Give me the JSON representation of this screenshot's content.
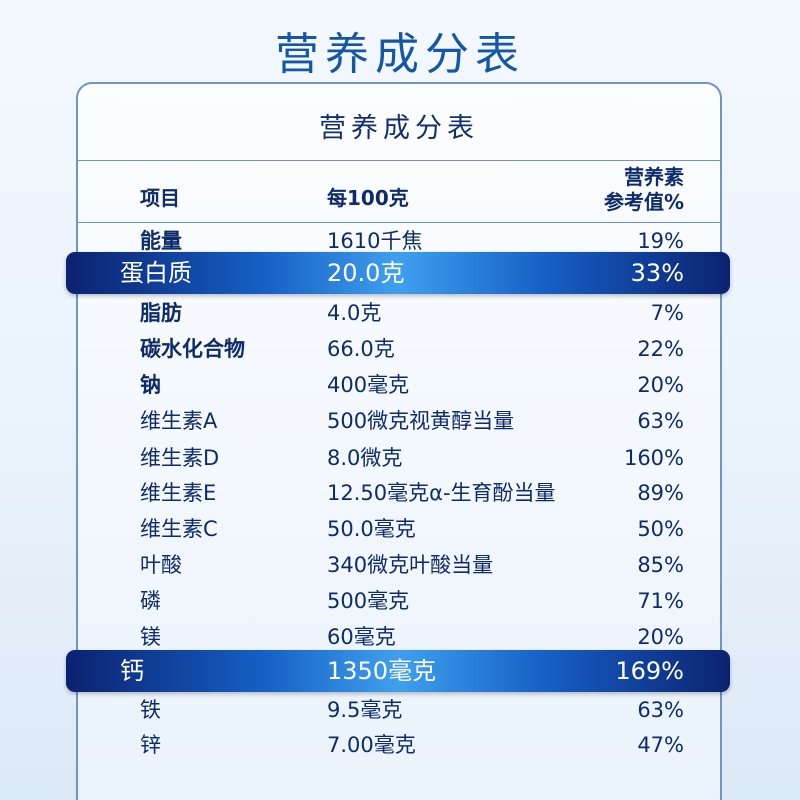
{
  "page_title": "营养成分表",
  "table": {
    "title": "营养成分表",
    "headers": {
      "item": "项目",
      "per_100g": "每100克",
      "nrv_line1": "营养素",
      "nrv_line2": "参考值%"
    },
    "rows": [
      {
        "item": "能量",
        "amount": "1610千焦",
        "nrv": "19%",
        "bold": true,
        "highlight": false
      },
      {
        "item": "蛋白质",
        "amount": "20.0克",
        "nrv": "33%",
        "bold": false,
        "highlight": true
      },
      {
        "item": "脂肪",
        "amount": "4.0克",
        "nrv": "7%",
        "bold": true,
        "highlight": false
      },
      {
        "item": "碳水化合物",
        "amount": "66.0克",
        "nrv": "22%",
        "bold": true,
        "highlight": false
      },
      {
        "item": "钠",
        "amount": "400毫克",
        "nrv": "20%",
        "bold": true,
        "highlight": false
      },
      {
        "item": "维生素A",
        "amount": "500微克视黄醇当量",
        "nrv": "63%",
        "bold": false,
        "highlight": false
      },
      {
        "item": "维生素D",
        "amount": "8.0微克",
        "nrv": "160%",
        "bold": false,
        "highlight": false
      },
      {
        "item": "维生素E",
        "amount": "12.50毫克α-生育酚当量",
        "nrv": "89%",
        "bold": false,
        "highlight": false
      },
      {
        "item": "维生素C",
        "amount": "50.0毫克",
        "nrv": "50%",
        "bold": false,
        "highlight": false
      },
      {
        "item": "叶酸",
        "amount": "340微克叶酸当量",
        "nrv": "85%",
        "bold": false,
        "highlight": false
      },
      {
        "item": "磷",
        "amount": "500毫克",
        "nrv": "71%",
        "bold": false,
        "highlight": false
      },
      {
        "item": "镁",
        "amount": "60毫克",
        "nrv": "20%",
        "bold": false,
        "highlight": false
      },
      {
        "item": "钙",
        "amount": "1350毫克",
        "nrv": "169%",
        "bold": false,
        "highlight": true
      },
      {
        "item": "铁",
        "amount": "9.5毫克",
        "nrv": "63%",
        "bold": false,
        "highlight": false
      },
      {
        "item": "锌",
        "amount": "7.00毫克",
        "nrv": "47%",
        "bold": false,
        "highlight": false
      }
    ]
  }
}
